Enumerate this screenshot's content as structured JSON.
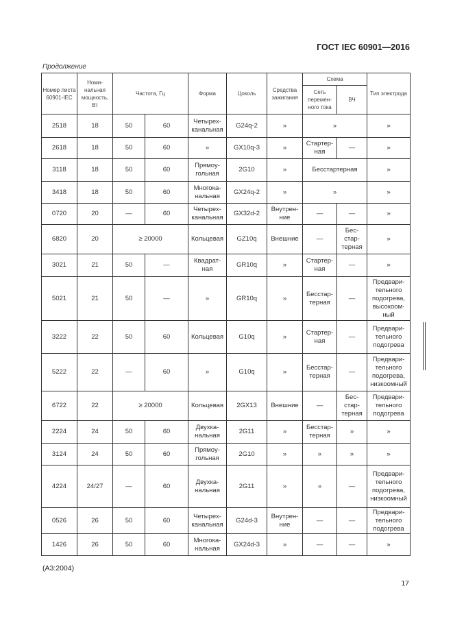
{
  "header": {
    "standard": "ГОСТ IEC 60901—2016",
    "continuation": "Продолжение"
  },
  "table": {
    "headers": {
      "sheet": "Номер листа 60901-IEC",
      "power": "Номи-нальная мощность, Вт",
      "freq": "Частота, Гц",
      "shape": "Форма",
      "base": "Цоколь",
      "ignition": "Средства зажигания",
      "scheme": "Схема",
      "ac": "Сеть перемен-ного тока",
      "hf": "ВЧ",
      "electrode": "Тип электрода"
    },
    "rows": [
      [
        "2518",
        "18",
        "50",
        "60",
        "Четырех-канальная",
        "G24q-2",
        "»",
        {
          "t": "»",
          "span": 2
        },
        "»"
      ],
      [
        "2618",
        "18",
        "50",
        "60",
        "»",
        "GX10q-3",
        "»",
        "Стартер-ная",
        "—",
        "»"
      ],
      [
        "3118",
        "18",
        "50",
        "60",
        "Прямоу-гольная",
        "2G10",
        "»",
        {
          "t": "Бесстартерная",
          "span": 2
        },
        "»"
      ],
      [
        "3418",
        "18",
        "50",
        "60",
        "Многока-нальная",
        "GX24q-2",
        "»",
        {
          "t": "»",
          "span": 2
        },
        "»"
      ],
      [
        "0720",
        "20",
        "—",
        "60",
        "Четырех-канальная",
        "GX32d-2",
        "Внутрен-ние",
        "—",
        "—",
        "»"
      ],
      [
        "6820",
        "20",
        {
          "t": "≥ 20000",
          "span": 2
        },
        "Кольцевая",
        "GZ10q",
        "Внешние",
        "—",
        "Бес-стар-терная",
        "»"
      ],
      [
        "3021",
        "21",
        "50",
        "—",
        "Квадрат-ная",
        "GR10q",
        "»",
        "Стартер-ная",
        "—",
        "»"
      ],
      [
        "5021",
        "21",
        "50",
        "—",
        "»",
        "GR10q",
        "»",
        "Бесстар-терная",
        "—",
        "Предвари-тельного подогрева, высокоом-ный"
      ],
      [
        "3222",
        "22",
        "50",
        "60",
        "Кольцевая",
        "G10q",
        "»",
        "Стартер-ная",
        "—",
        "Предвари-тельного подогрева"
      ],
      [
        "5222",
        "22",
        "—",
        "60",
        "»",
        "G10q",
        "»",
        "Бесстар-терная",
        "—",
        "Предвари-тельного подогрева, низкоомный"
      ],
      [
        "6722",
        "22",
        {
          "t": "≥ 20000",
          "span": 2
        },
        "Кольцевая",
        "2GX13",
        "Внешние",
        "—",
        "Бес-стар-терная",
        "Предвари-тельного подогрева"
      ],
      [
        "2224",
        "24",
        "50",
        "60",
        "Двухка-нальная",
        "2G11",
        "»",
        "Бесстар-терная",
        "»",
        "»"
      ],
      [
        "3124",
        "24",
        "50",
        "60",
        "Прямоу-гольная",
        "2G10",
        "»",
        "»",
        "»",
        "»"
      ],
      [
        "4224",
        "24/27",
        "—",
        "60",
        "Двухка-нальная",
        "2G11",
        "»",
        "»",
        "—",
        "Предвари-тельного подогрева, низкоомный"
      ],
      [
        "0526",
        "26",
        "50",
        "60",
        "Четырех-канальная",
        "G24d-3",
        "Внутрен-ние",
        "—",
        "—",
        "Предвари-тельного подогрева"
      ],
      [
        "1426",
        "26",
        "50",
        "60",
        "Многока-нальная",
        "GX24d-3",
        "»",
        "—",
        "—",
        "»"
      ]
    ]
  },
  "footer": {
    "note": "(А3:2004)",
    "page": "17"
  }
}
